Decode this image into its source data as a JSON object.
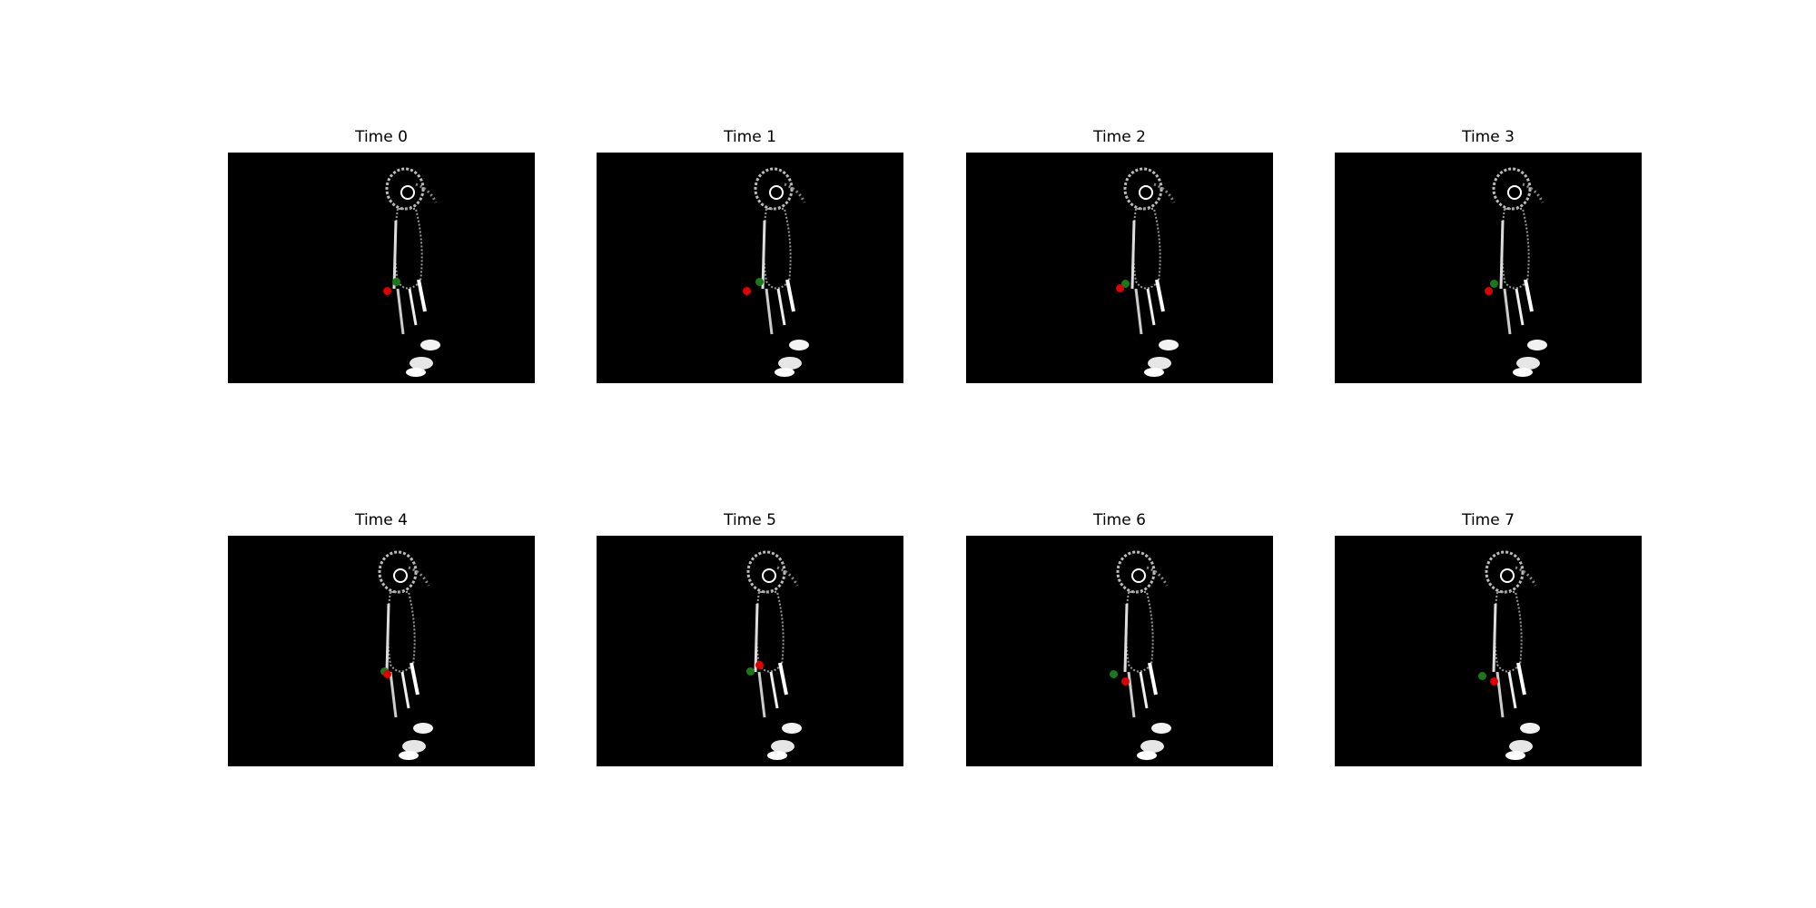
{
  "panels": [
    {
      "title": "Time 0",
      "green_pt": [
        0.55,
        0.56
      ],
      "red_pt": [
        0.52,
        0.6
      ]
    },
    {
      "title": "Time 1",
      "green_pt": [
        0.53,
        0.56
      ],
      "red_pt": [
        0.49,
        0.6
      ]
    },
    {
      "title": "Time 2",
      "green_pt": [
        0.52,
        0.57
      ],
      "red_pt": [
        0.5,
        0.59
      ]
    },
    {
      "title": "Time 3",
      "green_pt": [
        0.52,
        0.57
      ],
      "red_pt": [
        0.5,
        0.6
      ]
    },
    {
      "title": "Time 4",
      "green_pt": [
        0.51,
        0.59
      ],
      "red_pt": [
        0.52,
        0.6
      ]
    },
    {
      "title": "Time 5",
      "green_pt": [
        0.5,
        0.59
      ],
      "red_pt": [
        0.53,
        0.56
      ]
    },
    {
      "title": "Time 6",
      "green_pt": [
        0.48,
        0.6
      ],
      "red_pt": [
        0.52,
        0.63
      ]
    },
    {
      "title": "Time 7",
      "green_pt": [
        0.48,
        0.61
      ],
      "red_pt": [
        0.52,
        0.63
      ]
    }
  ],
  "colors": {
    "background": "#000000",
    "green_marker": "#1a7a1a",
    "red_marker": "#e00000"
  }
}
